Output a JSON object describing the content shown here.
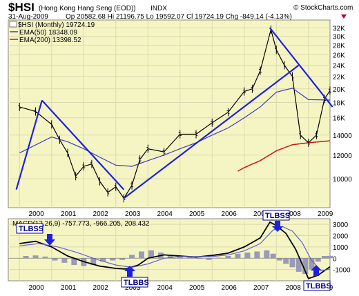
{
  "header": {
    "symbol": "$HSI",
    "name": "(Hong Kong Hang Seng (EOD))",
    "exchange": "INDX",
    "date": "31-Aug-2009",
    "quote": "Op 20582.68  Hi 21196.75  Lo 19592.07  Cl 19724.19  Chg -849.14 (-4.13%)",
    "watermark": "© StockCharts.com"
  },
  "legend": {
    "main": "$HSI (Monthly) 19724.19",
    "ema50": "EMA(50) 18348.09",
    "ema200": "EMA(200) 13398.52"
  },
  "colors": {
    "panel_bg": "#f5f5c4",
    "grid": "#d9d9b0",
    "trendline": "#1f1fe0",
    "ema50": "#3b3bc0",
    "ema200": "#d01010",
    "macd": "#000000",
    "signal": "#6060d0",
    "hist": "#9a9ab8",
    "down_arrow": "#b00030"
  },
  "annotations": {
    "tlbss_left": "TLBSS",
    "tlbss_right": "TLBSS",
    "tlbbs_left": "TLBBS",
    "tlbbs_right": "TLBBS"
  },
  "chart_data": [
    {
      "type": "line",
      "series": [
        {
          "name": "$HSI (Monthly)",
          "x": [
            2000.0,
            2000.5,
            2001.0,
            2001.25,
            2001.5,
            2001.75,
            2002.0,
            2002.25,
            2002.5,
            2002.75,
            2003.0,
            2003.25,
            2003.5,
            2003.75,
            2004.0,
            2004.5,
            2005.0,
            2005.5,
            2006.0,
            2006.5,
            2007.0,
            2007.25,
            2007.5,
            2007.83,
            2008.0,
            2008.25,
            2008.5,
            2008.75,
            2009.0,
            2009.25,
            2009.5,
            2009.67
          ],
          "values": [
            17400,
            16800,
            15200,
            13500,
            12200,
            10200,
            11000,
            11200,
            9800,
            9000,
            9400,
            8600,
            9500,
            11600,
            12600,
            12300,
            14100,
            14100,
            15400,
            16700,
            19600,
            20000,
            23000,
            31600,
            27000,
            24000,
            22000,
            14000,
            13200,
            14000,
            18500,
            19724
          ]
        },
        {
          "name": "EMA(50)",
          "x": [
            2000.0,
            2001.0,
            2001.5,
            2002.0,
            2002.5,
            2003.0,
            2003.5,
            2004.0,
            2004.5,
            2005.0,
            2005.5,
            2006.0,
            2006.5,
            2007.0,
            2007.5,
            2008.0,
            2008.5,
            2009.0,
            2009.67
          ],
          "values": [
            12200,
            13800,
            13300,
            12600,
            11800,
            11100,
            11000,
            11500,
            12000,
            12600,
            13200,
            14000,
            14800,
            16000,
            17400,
            19500,
            20100,
            18400,
            18348
          ]
        },
        {
          "name": "EMA(200)",
          "x": [
            2006.8,
            2007.0,
            2007.5,
            2008.0,
            2008.5,
            2009.0,
            2009.5,
            2009.67
          ],
          "values": [
            10600,
            10900,
            11500,
            12400,
            13000,
            13200,
            13350,
            13398
          ]
        }
      ],
      "trendlines": [
        {
          "x": [
            1999.9,
            2000.7
          ],
          "values": [
            9200,
            18300
          ]
        },
        {
          "x": [
            2000.7,
            2003.25
          ],
          "values": [
            18300,
            9200
          ]
        },
        {
          "x": [
            2003.25,
            2008.7
          ],
          "values": [
            8600,
            24000
          ]
        },
        {
          "x": [
            2007.8,
            2009.75
          ],
          "values": [
            32000,
            17400
          ]
        }
      ],
      "ylabel": "",
      "yscale": "log",
      "ylim": [
        8000,
        34000
      ],
      "yticks": [
        10000,
        12000,
        14000,
        16000,
        18000,
        20000,
        22000,
        24000,
        26000,
        28000,
        30000,
        32000
      ],
      "ytick_labels": [
        "10000",
        "12000",
        "14000",
        "16K",
        "18K",
        "20K",
        "22K",
        "24K",
        "26K",
        "28K",
        "30K",
        "32K"
      ],
      "xticks": [
        2000,
        2001,
        2002,
        2003,
        2004,
        2005,
        2006,
        2007,
        2008,
        2009
      ],
      "xtick_labels": [
        "2000",
        "2001",
        "2002",
        "2003",
        "2004",
        "2005",
        "2006",
        "2007",
        "2008",
        "2009"
      ]
    },
    {
      "type": "line",
      "title": "MACD(12,26,9) -757.773, -966.205, 208.432",
      "series": [
        {
          "name": "MACD",
          "x": [
            2000.0,
            2000.5,
            2001.0,
            2001.5,
            2002.0,
            2002.5,
            2003.0,
            2003.3,
            2003.7,
            2004.0,
            2004.5,
            2005.0,
            2005.5,
            2006.0,
            2006.5,
            2007.0,
            2007.5,
            2007.8,
            2008.0,
            2008.3,
            2008.6,
            2009.0,
            2009.3,
            2009.67
          ],
          "values": [
            1300,
            1500,
            1000,
            200,
            -300,
            -700,
            -900,
            -950,
            -600,
            0,
            300,
            200,
            100,
            250,
            450,
            1000,
            1800,
            3200,
            2900,
            2200,
            800,
            -1800,
            -1500,
            -758
          ]
        },
        {
          "name": "Signal",
          "x": [
            2000.0,
            2000.6,
            2001.2,
            2001.8,
            2002.4,
            2003.0,
            2003.5,
            2004.0,
            2004.5,
            2005.0,
            2005.5,
            2006.0,
            2006.5,
            2007.0,
            2007.5,
            2007.9,
            2008.2,
            2008.5,
            2008.8,
            2009.1,
            2009.4,
            2009.67
          ],
          "values": [
            1100,
            1300,
            1000,
            500,
            -100,
            -600,
            -800,
            -500,
            0,
            150,
            150,
            150,
            300,
            650,
            1300,
            2500,
            2800,
            2400,
            1400,
            -200,
            -1100,
            -966
          ]
        }
      ],
      "histogram": {
        "x": [
          2000.2,
          2000.5,
          2000.8,
          2001.1,
          2001.4,
          2001.7,
          2002.0,
          2002.3,
          2002.6,
          2002.9,
          2003.2,
          2003.5,
          2003.8,
          2004.1,
          2004.4,
          2004.7,
          2005.0,
          2005.3,
          2005.6,
          2005.9,
          2006.2,
          2006.5,
          2006.8,
          2007.1,
          2007.4,
          2007.7,
          2007.9,
          2008.1,
          2008.3,
          2008.5,
          2008.7,
          2008.9,
          2009.1,
          2009.3,
          2009.5,
          2009.67
        ],
        "values": [
          200,
          250,
          150,
          -200,
          -400,
          -600,
          -700,
          -600,
          -300,
          -200,
          -150,
          300,
          600,
          700,
          500,
          300,
          200,
          100,
          -50,
          -150,
          50,
          200,
          400,
          500,
          600,
          700,
          400,
          -200,
          -500,
          -800,
          -1200,
          -1400,
          -1000,
          -300,
          200,
          208
        ]
      },
      "ylim": [
        -2000,
        3500
      ],
      "yticks": [
        -1000,
        0,
        1000,
        2000,
        3000
      ],
      "ytick_labels": [
        "-1000",
        "0",
        "1000",
        "2000",
        "3000"
      ],
      "xticks": [
        2000,
        2001,
        2002,
        2003,
        2004,
        2005,
        2006,
        2007,
        2008,
        2009
      ],
      "xtick_labels": [
        "2000",
        "2001",
        "2002",
        "2003",
        "2004",
        "2005",
        "2006",
        "2007",
        "2008",
        "2009"
      ]
    }
  ]
}
